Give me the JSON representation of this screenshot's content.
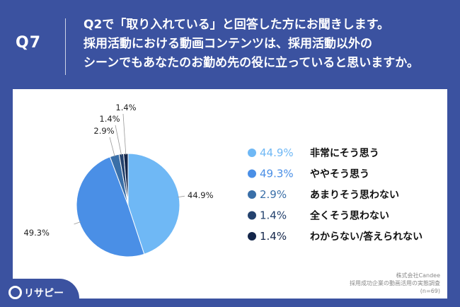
{
  "header": {
    "qnum": "Q7",
    "question_lines": [
      "Q2で「取り入れている」と回答した方にお聞きします。",
      "採用活動における動画コンテンツは、採用活動以外の",
      "シーンでもあなたのお勤め先の役に立っていると思いますか。"
    ]
  },
  "chart_data": {
    "type": "pie",
    "title": "",
    "categories": [
      "非常にそう思う",
      "ややそう思う",
      "あまりそう思わない",
      "全くそう思わない",
      "わからない/答えられない"
    ],
    "values": [
      44.9,
      49.3,
      2.9,
      1.4,
      1.4
    ],
    "value_labels": [
      "44.9%",
      "49.3%",
      "2.9%",
      "1.4%",
      "1.4%"
    ],
    "colors": [
      "#6fb8f5",
      "#4a8fe6",
      "#3a6fa8",
      "#24426e",
      "#14264a"
    ],
    "legend_position": "right",
    "start_angle_deg": 0,
    "direction": "clockwise"
  },
  "source": {
    "line1": "株式会社Candee",
    "line2": "採用成功企業の動画活用の実態調査",
    "line3": "(n=69)"
  },
  "logo": {
    "text": "リサピー",
    "icon": "risapy-logo-icon"
  }
}
